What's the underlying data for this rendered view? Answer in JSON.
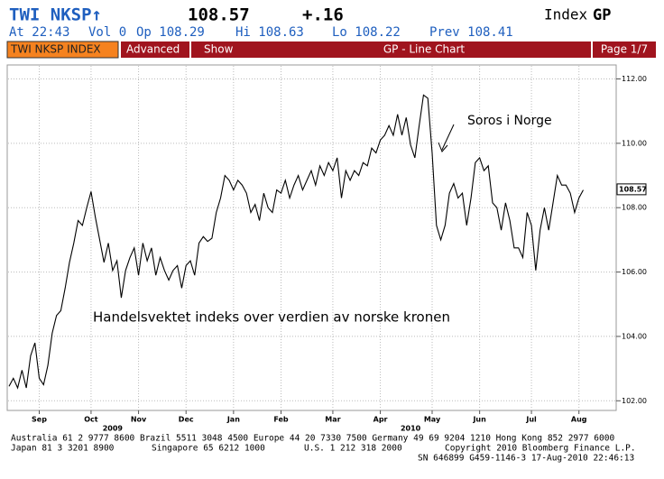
{
  "header": {
    "ticker": "TWI NKSP↑",
    "last": "108.57",
    "change": "+.16",
    "index_label": "Index",
    "function": "GP",
    "time": "At 22:43",
    "volume": "Vol 0",
    "open": "Op 108.29",
    "high": "Hi 108.63",
    "low": "Lo 108.22",
    "prev": "Prev 108.41"
  },
  "toolbar": {
    "security": "TWI NKSP INDEX",
    "advanced": "Advanced",
    "show": "Show",
    "title": "GP - Line Chart",
    "page": "Page 1/7"
  },
  "footer": {
    "line1": "Australia 61 2 9777 8600 Brazil 5511 3048 4500 Europe 44 20 7330 7500 Germany 49 69 9204 1210 Hong Kong 852 2977 6000",
    "line2a": "Japan 81 3 3201 8900",
    "line2b": "Singapore 65 6212 1000",
    "line2c": "U.S. 1 212 318 2000",
    "line2d": "Copyright 2010 Bloomberg Finance L.P.",
    "line3": "SN 646899 G459-1146-3 17-Aug-2010 22:46:13"
  },
  "chart_data": {
    "type": "line",
    "color": "#000000",
    "grid": true,
    "annotations": [
      "Soros i Norge",
      "Handelsvektet indeks over verdien av norske kronen"
    ],
    "last_price": 108.57,
    "xlim": [
      0,
      140
    ],
    "xticks": [
      {
        "value": 7,
        "label": "Sep"
      },
      {
        "value": 19,
        "label": "Oct"
      },
      {
        "value": 30,
        "label": "Nov"
      },
      {
        "value": 41,
        "label": "Dec"
      },
      {
        "value": 52,
        "label": "Jan"
      },
      {
        "value": 63,
        "label": "Feb"
      },
      {
        "value": 75,
        "label": "Mar"
      },
      {
        "value": 86,
        "label": "Apr"
      },
      {
        "value": 98,
        "label": "May"
      },
      {
        "value": 109,
        "label": "Jun"
      },
      {
        "value": 121,
        "label": "Jul"
      },
      {
        "value": 132,
        "label": "Aug"
      }
    ],
    "year_labels": [
      {
        "value": 24,
        "label": "2009"
      },
      {
        "value": 93,
        "label": "2010"
      }
    ],
    "ylim": [
      101.7,
      112.35
    ],
    "yticks": [
      {
        "value": 102,
        "label": "102.00"
      },
      {
        "value": 104,
        "label": "104.00"
      },
      {
        "value": 106,
        "label": "106.00"
      },
      {
        "value": 108,
        "label": "108.00"
      },
      {
        "value": 110,
        "label": "110.00"
      },
      {
        "value": 112,
        "label": "112.00"
      }
    ],
    "values": [
      102.45,
      102.7,
      102.4,
      102.95,
      102.4,
      103.4,
      103.8,
      102.7,
      102.5,
      103.1,
      104.1,
      104.65,
      104.8,
      105.5,
      106.3,
      106.9,
      107.6,
      107.45,
      108.0,
      108.5,
      107.7,
      107.0,
      106.3,
      106.9,
      106.05,
      106.35,
      105.2,
      106.05,
      106.45,
      106.75,
      105.9,
      106.9,
      106.35,
      106.75,
      105.9,
      106.45,
      106.05,
      105.75,
      106.05,
      106.2,
      105.5,
      106.2,
      106.35,
      105.9,
      106.9,
      107.1,
      106.95,
      107.05,
      107.85,
      108.3,
      109.0,
      108.85,
      108.55,
      108.85,
      108.7,
      108.45,
      107.85,
      108.1,
      107.6,
      108.45,
      108.0,
      107.85,
      108.55,
      108.45,
      108.85,
      108.3,
      108.7,
      109.0,
      108.55,
      108.85,
      109.15,
      108.7,
      109.3,
      109.0,
      109.4,
      109.15,
      109.55,
      108.3,
      109.15,
      108.85,
      109.15,
      109.0,
      109.4,
      109.3,
      109.85,
      109.7,
      110.1,
      110.25,
      110.55,
      110.25,
      110.9,
      110.25,
      110.8,
      109.95,
      109.55,
      110.55,
      111.5,
      111.4,
      109.7,
      107.45,
      107.0,
      107.45,
      108.45,
      108.75,
      108.3,
      108.45,
      107.45,
      108.3,
      109.4,
      109.55,
      109.15,
      109.3,
      108.15,
      108.0,
      107.3,
      108.15,
      107.6,
      106.75,
      106.75,
      106.45,
      107.85,
      107.45,
      106.05,
      107.3,
      108.0,
      107.3,
      108.15,
      109.0,
      108.7,
      108.7,
      108.45,
      107.85,
      108.3,
      108.55
    ]
  }
}
